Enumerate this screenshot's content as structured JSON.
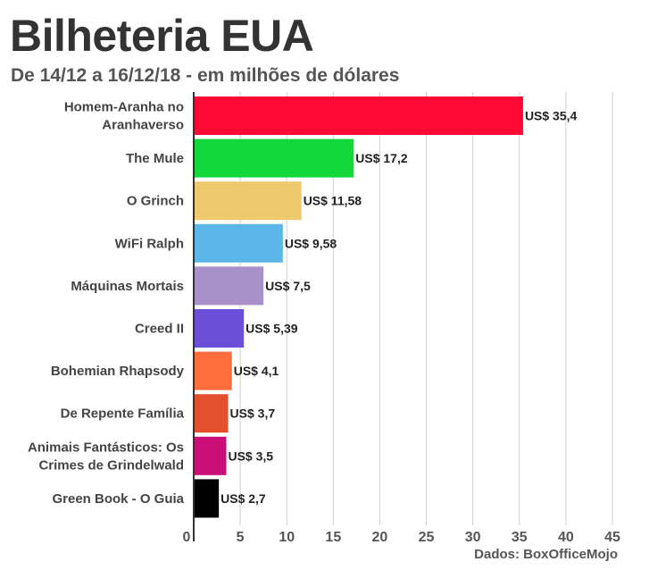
{
  "title": "Bilheteria EUA",
  "subtitle": "De 14/12 a 16/12/18 - em milhões de dólares",
  "source": "Dados: BoxOfficeMojo",
  "chart_data": {
    "type": "bar",
    "orientation": "horizontal",
    "categories": [
      "Homem-Aranha no Aranhaverso",
      "The Mule",
      "O Grinch",
      "WiFi Ralph",
      "Máquinas Mortais",
      "Creed II",
      "Bohemian Rhapsody",
      "De Repente Família",
      "Animais Fantásticos: Os Crimes de Grindelwald",
      "Green Book - O Guia"
    ],
    "category_lines": [
      [
        "Homem-Aranha no",
        "Aranhaverso"
      ],
      [
        "The Mule"
      ],
      [
        "O Grinch"
      ],
      [
        "WiFi Ralph"
      ],
      [
        "Máquinas Mortais"
      ],
      [
        "Creed II"
      ],
      [
        "Bohemian Rhapsody"
      ],
      [
        "De Repente Família"
      ],
      [
        "Animais Fantásticos: Os",
        "Crimes de Grindelwald"
      ],
      [
        "Green Book - O Guia"
      ]
    ],
    "values": [
      35.4,
      17.2,
      11.58,
      9.58,
      7.5,
      5.39,
      4.1,
      3.7,
      3.5,
      2.7
    ],
    "data_labels": [
      "US$ 35,4",
      "US$ 17,2",
      "US$ 11,58",
      "US$ 9,58",
      "US$ 7,5",
      "US$ 5,39",
      "US$ 4,1",
      "US$ 3,7",
      "US$ 3,5",
      "US$ 2,7"
    ],
    "colors": [
      "#ff0a35",
      "#13d83c",
      "#eec96e",
      "#5cb6e7",
      "#a890c8",
      "#6c4fd9",
      "#ff6d3d",
      "#e4502d",
      "#cb0f79",
      "#000000"
    ],
    "xlim": [
      0,
      45
    ],
    "xticks": [
      0,
      5,
      10,
      15,
      20,
      25,
      30,
      35,
      40,
      45
    ],
    "xtick_labels": [
      "0",
      "5",
      "10",
      "15",
      "20",
      "25",
      "30",
      "35",
      "40",
      "45"
    ],
    "grid": true,
    "xlabel": "",
    "ylabel": ""
  }
}
